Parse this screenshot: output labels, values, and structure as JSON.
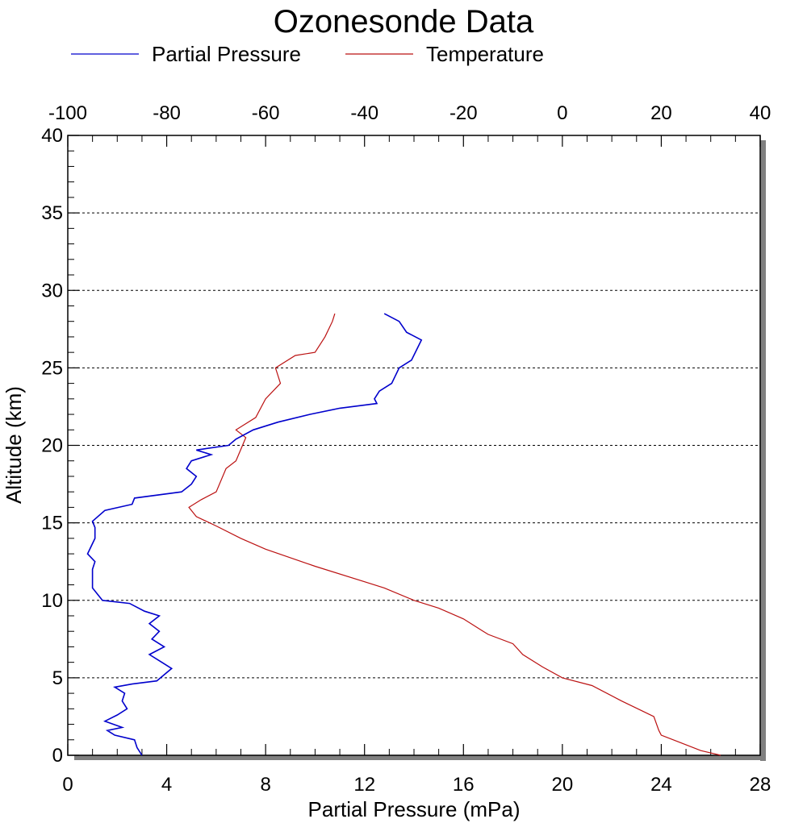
{
  "chart_data": {
    "type": "line",
    "title": "Ozonesonde Data",
    "xlabel": "Partial Pressure (mPa)",
    "ylabel": "Altitude (km)",
    "xlim": [
      0,
      28
    ],
    "ylim": [
      0,
      40
    ],
    "x_ticks": [
      "0",
      "4",
      "8",
      "12",
      "16",
      "20",
      "24",
      "28"
    ],
    "y_ticks": [
      "0",
      "5",
      "10",
      "15",
      "20",
      "25",
      "30",
      "35",
      "40"
    ],
    "x2_lim": [
      -100,
      40
    ],
    "x2_ticks": [
      "-100",
      "-80",
      "-60",
      "-40",
      "-20",
      "0",
      "20",
      "40"
    ],
    "grid": "horizontal dotted",
    "legend": "top",
    "colors": {
      "partial_pressure": "#0000cc",
      "temperature": "#bb1111"
    },
    "series": [
      {
        "name": "Partial Pressure",
        "x_axis": "bottom",
        "points": [
          [
            3.0,
            0.0
          ],
          [
            2.8,
            0.5
          ],
          [
            2.7,
            1.0
          ],
          [
            1.9,
            1.3
          ],
          [
            1.6,
            1.6
          ],
          [
            2.2,
            1.8
          ],
          [
            1.5,
            2.2
          ],
          [
            2.0,
            2.6
          ],
          [
            2.4,
            3.0
          ],
          [
            2.2,
            3.5
          ],
          [
            2.3,
            4.0
          ],
          [
            1.9,
            4.4
          ],
          [
            2.6,
            4.6
          ],
          [
            3.6,
            4.8
          ],
          [
            4.2,
            5.6
          ],
          [
            3.8,
            6.0
          ],
          [
            3.3,
            6.5
          ],
          [
            3.9,
            7.0
          ],
          [
            3.4,
            7.5
          ],
          [
            3.7,
            8.0
          ],
          [
            3.3,
            8.5
          ],
          [
            3.7,
            9.0
          ],
          [
            3.1,
            9.3
          ],
          [
            2.5,
            9.8
          ],
          [
            1.4,
            10.0
          ],
          [
            1.0,
            10.8
          ],
          [
            1.0,
            12.0
          ],
          [
            1.1,
            12.5
          ],
          [
            0.8,
            13.0
          ],
          [
            1.1,
            14.0
          ],
          [
            1.1,
            14.7
          ],
          [
            1.0,
            15.1
          ],
          [
            1.5,
            15.8
          ],
          [
            2.6,
            16.2
          ],
          [
            2.7,
            16.6
          ],
          [
            4.6,
            17.0
          ],
          [
            5.0,
            17.5
          ],
          [
            5.2,
            18.0
          ],
          [
            4.8,
            18.5
          ],
          [
            5.0,
            19.0
          ],
          [
            5.8,
            19.4
          ],
          [
            5.2,
            19.7
          ],
          [
            6.5,
            20.0
          ],
          [
            6.8,
            20.4
          ],
          [
            7.5,
            21.0
          ],
          [
            8.5,
            21.5
          ],
          [
            9.8,
            22.0
          ],
          [
            11.0,
            22.4
          ],
          [
            12.5,
            22.7
          ],
          [
            12.4,
            23.0
          ],
          [
            12.6,
            23.5
          ],
          [
            13.1,
            24.0
          ],
          [
            13.4,
            25.0
          ],
          [
            13.9,
            25.5
          ],
          [
            14.3,
            26.8
          ],
          [
            13.7,
            27.3
          ],
          [
            13.4,
            28.0
          ],
          [
            12.8,
            28.5
          ]
        ]
      },
      {
        "name": "Temperature",
        "x_axis": "top",
        "points": [
          [
            32.0,
            0.0
          ],
          [
            28.0,
            0.3
          ],
          [
            24.0,
            0.8
          ],
          [
            20.0,
            1.3
          ],
          [
            19.5,
            1.6
          ],
          [
            18.5,
            2.5
          ],
          [
            12.0,
            3.5
          ],
          [
            6.0,
            4.5
          ],
          [
            0.0,
            5.0
          ],
          [
            -4.0,
            5.7
          ],
          [
            -8.0,
            6.5
          ],
          [
            -10.0,
            7.2
          ],
          [
            -15.0,
            7.8
          ],
          [
            -16.0,
            8.0
          ],
          [
            -20.0,
            8.8
          ],
          [
            -25.0,
            9.5
          ],
          [
            -30.0,
            10.0
          ],
          [
            -36.0,
            10.8
          ],
          [
            -40.0,
            11.2
          ],
          [
            -50.0,
            12.2
          ],
          [
            -60.0,
            13.3
          ],
          [
            -65.0,
            14.0
          ],
          [
            -70.0,
            14.8
          ],
          [
            -74.0,
            15.4
          ],
          [
            -75.5,
            16.0
          ],
          [
            -73.0,
            16.5
          ],
          [
            -70.0,
            17.0
          ],
          [
            -68.0,
            18.5
          ],
          [
            -66.0,
            19.0
          ],
          [
            -64.0,
            20.5
          ],
          [
            -66.0,
            21.0
          ],
          [
            -62.0,
            21.8
          ],
          [
            -60.0,
            23.0
          ],
          [
            -57.0,
            24.0
          ],
          [
            -58.0,
            25.0
          ],
          [
            -54.0,
            25.8
          ],
          [
            -50.0,
            26.0
          ],
          [
            -48.0,
            27.0
          ],
          [
            -46.5,
            28.0
          ],
          [
            -46.0,
            28.5
          ]
        ]
      }
    ]
  }
}
